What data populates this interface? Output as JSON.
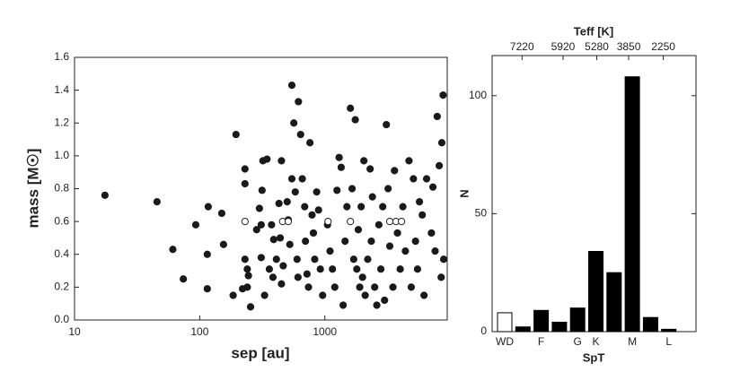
{
  "chart_data": [
    {
      "type": "scatter",
      "x_label": "sep [au]",
      "y_label": "mass [M☉]",
      "log_x": true,
      "xlim": [
        10,
        9500
      ],
      "xticks": [
        10,
        100,
        1000
      ],
      "ylim": [
        0,
        1.6
      ],
      "yticks": [
        {
          "value": 0,
          "label": "0.0"
        },
        0.2,
        0.4,
        0.6,
        0.8,
        {
          "value": 1,
          "label": "1.0"
        },
        1.2,
        1.4,
        1.6
      ],
      "series": [
        {
          "color": "#1a1a1a",
          "fill": "#1a1a1a",
          "x": [
            17.5,
            45.6,
            61,
            74,
            93,
            117,
            115,
            115,
            150,
            155,
            195,
            230,
            230,
            230,
            240,
            245,
            240,
            220,
            185,
            255,
            285,
            300,
            320,
            315,
            310,
            310,
            330,
            345,
            360,
            375,
            390,
            385,
            410,
            430,
            440,
            450,
            450,
            465,
            500,
            510,
            525,
            545,
            545,
            565,
            580,
            600,
            610,
            615,
            640,
            660,
            690,
            700,
            720,
            740,
            760,
            790,
            810,
            830,
            860,
            890,
            920,
            960,
            1050,
            1100,
            1150,
            1200,
            1250,
            1300,
            1350,
            1400,
            1450,
            1500,
            1600,
            1650,
            1700,
            1750,
            1800,
            1850,
            1900,
            1950,
            2000,
            2050,
            2100,
            2200,
            2300,
            2350,
            2400,
            2500,
            2600,
            2700,
            2800,
            2900,
            3000,
            3100,
            3200,
            3300,
            3500,
            3600,
            3800,
            4000,
            4200,
            4400,
            4700,
            4900,
            5100,
            5300,
            5500,
            5700,
            6000,
            6200,
            6500,
            7100,
            7300,
            7600,
            7900,
            8200,
            8600,
            8800,
            8900,
            8500
          ],
          "values": [
            0.76,
            0.72,
            0.43,
            0.25,
            0.58,
            0.69,
            0.4,
            0.19,
            0.65,
            0.46,
            1.13,
            0.92,
            0.83,
            0.37,
            0.31,
            0.27,
            0.2,
            0.19,
            0.15,
            0.08,
            0.55,
            0.68,
            0.97,
            0.79,
            0.58,
            0.38,
            0.15,
            0.98,
            0.31,
            0.58,
            0.49,
            0.26,
            0.37,
            0.71,
            0.5,
            0.97,
            0.22,
            0.33,
            0.72,
            0.61,
            0.46,
            1.43,
            0.86,
            1.2,
            0.78,
            0.37,
            0.26,
            1.33,
            1.13,
            0.86,
            0.69,
            0.48,
            0.28,
            0.2,
            1.08,
            0.64,
            0.53,
            0.37,
            0.78,
            0.67,
            0.31,
            0.15,
            0.58,
            0.42,
            0.31,
            0.2,
            0.79,
            0.99,
            0.93,
            0.09,
            0.48,
            0.69,
            1.29,
            0.8,
            0.37,
            1.22,
            0.31,
            0.55,
            0.2,
            0.69,
            0.26,
            0.97,
            0.15,
            0.37,
            0.92,
            0.48,
            0.75,
            0.2,
            0.09,
            0.58,
            0.31,
            0.69,
            0.12,
            1.19,
            0.8,
            0.45,
            0.2,
            0.91,
            0.53,
            0.31,
            0.69,
            0.42,
            0.97,
            0.2,
            0.86,
            0.48,
            0.31,
            0.72,
            0.64,
            0.15,
            0.86,
            0.53,
            0.81,
            0.42,
            1.24,
            0.94,
            1.08,
            1.37,
            0.37,
            0.26
          ]
        },
        {
          "color": "#1a1a1a",
          "fill": "#ffffff",
          "x": [
            230,
            460,
            510,
            1060,
            1600,
            3300,
            3700,
            4100
          ],
          "values": [
            0.6,
            0.6,
            0.6,
            0.6,
            0.6,
            0.6,
            0.6,
            0.6
          ]
        }
      ]
    },
    {
      "type": "bar",
      "x_label": "SpT",
      "y_label": "N",
      "top_label": "Teff [K]",
      "top_ticks": [
        7220,
        5920,
        5280,
        3850,
        2250
      ],
      "categories": [
        "WD",
        null,
        "F",
        null,
        "G",
        "K",
        null,
        "M",
        null,
        "L"
      ],
      "values": [
        8,
        2,
        9,
        4,
        10,
        34,
        25,
        108,
        6,
        1
      ],
      "colors": [
        "#ffffff",
        "#000000",
        "#000000",
        "#000000",
        "#000000",
        "#000000",
        "#000000",
        "#000000",
        "#000000",
        "#000000"
      ],
      "ylim": [
        0,
        117
      ],
      "yticks": [
        0,
        50,
        100
      ]
    }
  ]
}
